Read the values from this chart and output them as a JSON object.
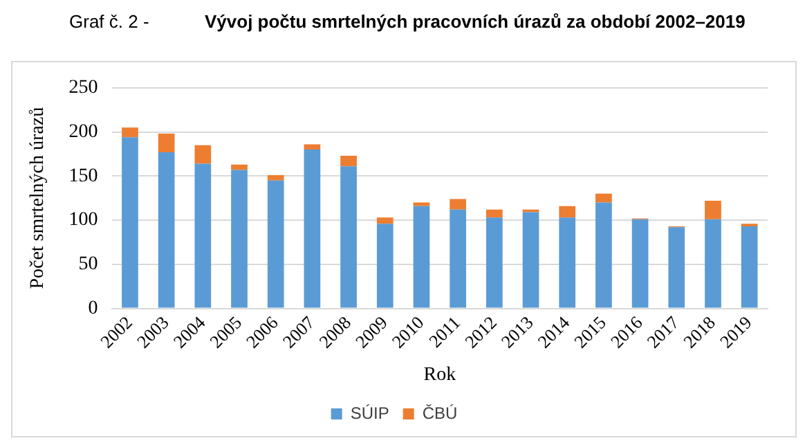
{
  "chart_data": {
    "type": "bar",
    "title": "Graf č. 2 -",
    "subtitle": "Vývoj počtu smrtelných pracovních úrazů za období 2002–2019",
    "xlabel": "Rok",
    "ylabel": "Počet smrtelných úrazů",
    "stacked": true,
    "categories": [
      "2002",
      "2003",
      "2004",
      "2005",
      "2006",
      "2007",
      "2008",
      "2009",
      "2010",
      "2011",
      "2012",
      "2013",
      "2014",
      "2015",
      "2016",
      "2017",
      "2018",
      "2019"
    ],
    "series": [
      {
        "name": "SÚIP",
        "color": "#5b9bd5",
        "values": [
          194,
          177,
          164,
          157,
          145,
          180,
          161,
          96,
          116,
          112,
          103,
          109,
          103,
          120,
          101,
          92,
          101,
          93
        ]
      },
      {
        "name": "ČBÚ",
        "color": "#ed7d31",
        "values": [
          11,
          21,
          21,
          6,
          6,
          6,
          12,
          7,
          4,
          12,
          9,
          3,
          13,
          10,
          1,
          1,
          21,
          3
        ]
      }
    ],
    "ylim": [
      0,
      250
    ],
    "yticks": [
      0,
      50,
      100,
      150,
      200,
      250
    ],
    "grid": "y",
    "legend": "bottom"
  }
}
